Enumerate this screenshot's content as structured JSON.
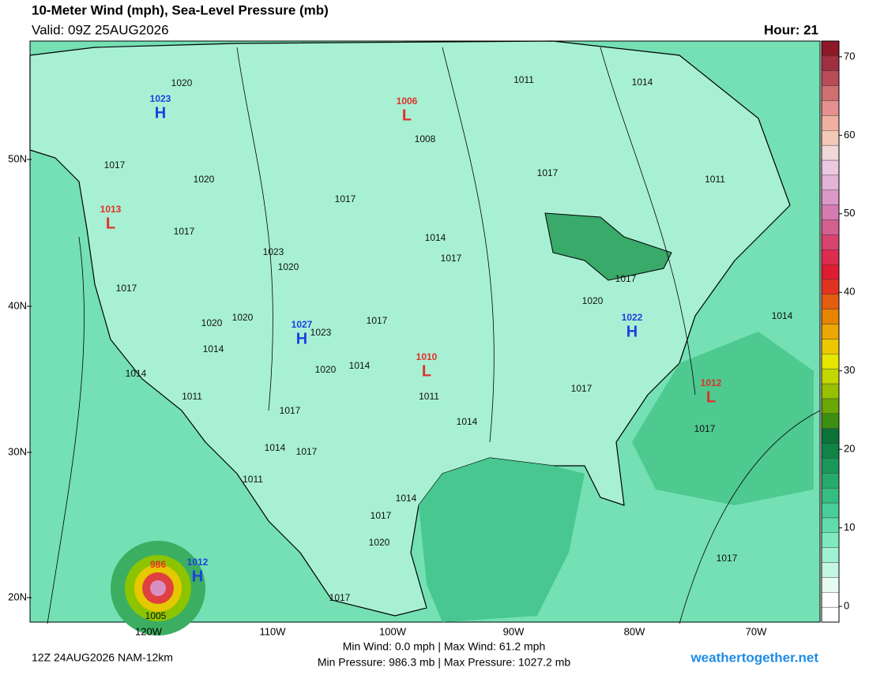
{
  "header": {
    "title": "10-Meter Wind (mph), Sea-Level Pressure (mb)",
    "valid": "Valid: 09Z 25AUG2026",
    "hour": "Hour: 21"
  },
  "map": {
    "lat_labels": [
      "50N",
      "40N",
      "30N",
      "20N"
    ],
    "lon_labels": [
      "120W",
      "110W",
      "100W",
      "90W",
      "80W",
      "70W"
    ],
    "high_color": "#1f3fe0",
    "low_color": "#e0302a",
    "centers": [
      {
        "type": "H",
        "value": 1023
      },
      {
        "type": "L",
        "value": 1006
      },
      {
        "type": "L",
        "value": 1013
      },
      {
        "type": "H",
        "value": 1027
      },
      {
        "type": "H",
        "value": 1022
      },
      {
        "type": "L",
        "value": 1010
      },
      {
        "type": "L",
        "value": 1012
      },
      {
        "type": "H",
        "value": 1012
      },
      {
        "type": "L",
        "value": 986
      }
    ],
    "isobar_labels": [
      1020,
      1011,
      1014,
      1008,
      1017,
      1017,
      1011,
      1020,
      1017,
      1017,
      1014,
      1017,
      1023,
      1020,
      1017,
      1017,
      1020,
      1014,
      1017,
      1020,
      1020,
      1023,
      1014,
      1014,
      1020,
      1014,
      1017,
      1011,
      1011,
      1017,
      1014,
      1017,
      1014,
      1017,
      1011,
      1014,
      1017,
      1020,
      1017,
      1017,
      1005
    ],
    "colorbar": {
      "range": [
        -2,
        72
      ],
      "ticks": [
        0,
        10,
        20,
        30,
        40,
        50,
        60,
        70
      ],
      "colors": [
        "#ffffff",
        "#ffffff",
        "#e6fbf2",
        "#c4f7e2",
        "#a0f2d2",
        "#7fe9bf",
        "#60ddab",
        "#48cf97",
        "#36be82",
        "#27ab6d",
        "#1a985a",
        "#108447",
        "#0b7238",
        "#3c8f10",
        "#6aa806",
        "#96c000",
        "#c2d600",
        "#e6e600",
        "#ecc800",
        "#eca800",
        "#e88400",
        "#e45c10",
        "#e03420",
        "#e01c30",
        "#dc2c50",
        "#d84470",
        "#d46090",
        "#d47cb0",
        "#dc98c8",
        "#e4b4d8",
        "#ecc8e0",
        "#f0d8d8",
        "#f4c8b8",
        "#f0b0a0",
        "#e49090",
        "#d07070",
        "#b84c58",
        "#a03040",
        "#8c1828"
      ]
    }
  },
  "footer": {
    "run": "12Z 24AUG2026 NAM-12km",
    "wind": "Min Wind:  0.0 mph | Max Wind:  61.2 mph",
    "pressure": "Min Pressure: 986.3 mb | Max Pressure: 1027.2 mb",
    "site": "weathertogether.net"
  }
}
